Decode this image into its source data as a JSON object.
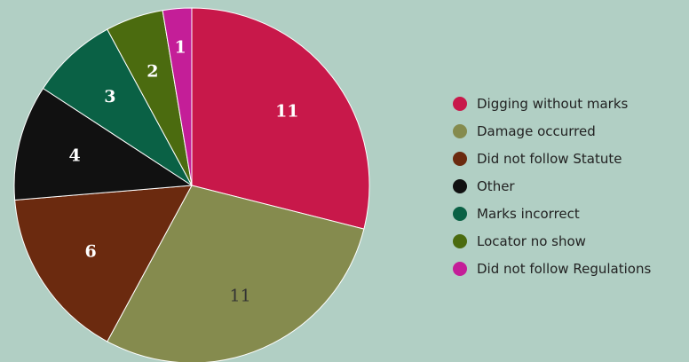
{
  "chart_data": {
    "type": "pie",
    "title": "",
    "slices": [
      {
        "label": "Digging without marks",
        "value": 11,
        "color": "#c8184a",
        "label_color": "#ffffff"
      },
      {
        "label": "Damage occurred",
        "value": 11,
        "color": "#858b4e",
        "label_color": "#333333"
      },
      {
        "label": "Did not follow Statute",
        "value": 6,
        "color": "#6b2a0f",
        "label_color": "#ffffff"
      },
      {
        "label": "Other",
        "value": 4,
        "color": "#111111",
        "label_color": "#ffffff"
      },
      {
        "label": "Marks incorrect",
        "value": 3,
        "color": "#0a6145",
        "label_color": "#ffffff"
      },
      {
        "label": "Locator no show",
        "value": 2,
        "color": "#4b6b0f",
        "label_color": "#ffffff"
      },
      {
        "label": "Did not follow Regulations",
        "value": 1,
        "color": "#c41e98",
        "label_color": "#ffffff"
      }
    ],
    "start_angle": "top",
    "direction": "clockwise",
    "legend_position": "right"
  }
}
